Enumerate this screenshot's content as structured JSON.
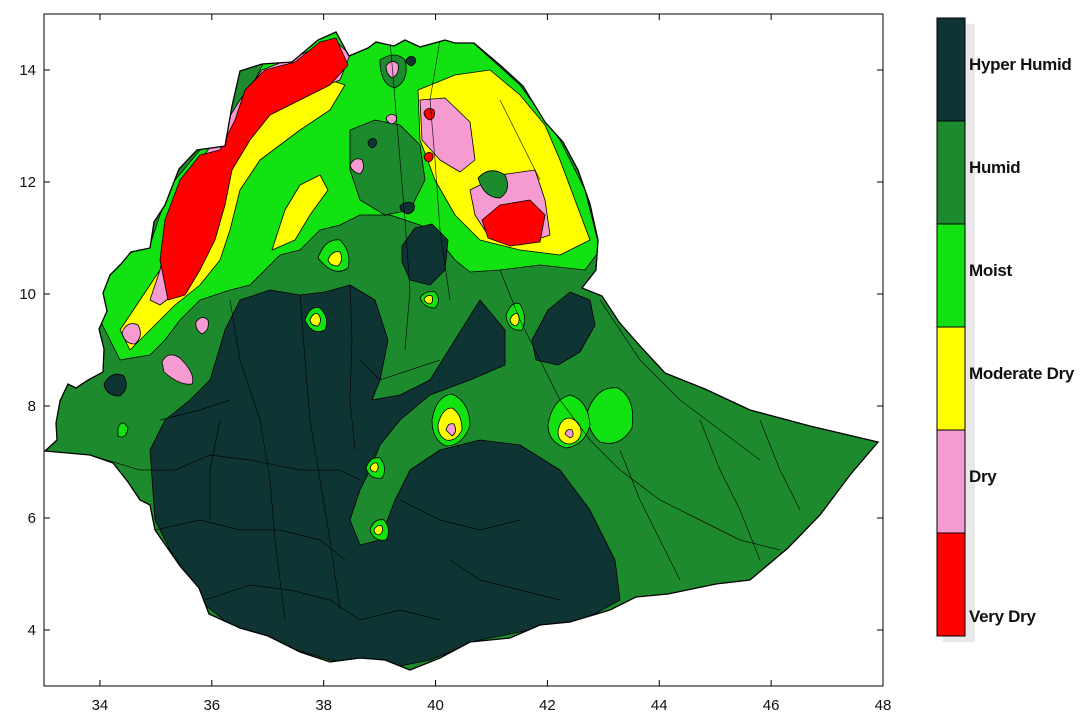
{
  "map": {
    "x_ticks": [
      "34",
      "36",
      "38",
      "40",
      "42",
      "44",
      "46",
      "48"
    ],
    "y_ticks": [
      "4",
      "6",
      "8",
      "10",
      "12",
      "14"
    ],
    "x_range": [
      33,
      48
    ],
    "y_range": [
      3,
      15
    ]
  },
  "legend": {
    "items": [
      {
        "label": "Hyper Humid",
        "color": "#0f3434"
      },
      {
        "label": "Humid",
        "color": "#1d8a2e"
      },
      {
        "label": "Moist",
        "color": "#12e212"
      },
      {
        "label": "Moderate Dry",
        "color": "#ffff00"
      },
      {
        "label": "Dry",
        "color": "#f69ad2"
      },
      {
        "label": "Very Dry",
        "color": "#ff0000"
      }
    ]
  },
  "colors": {
    "hyper_humid": "#0f3434",
    "humid": "#1d8a2e",
    "moist": "#12e212",
    "moderate_dry": "#ffff00",
    "dry": "#f69ad2",
    "very_dry": "#ff0000"
  }
}
